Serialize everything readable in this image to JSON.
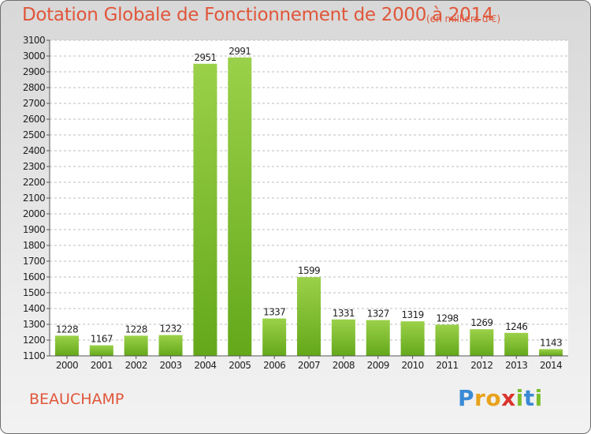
{
  "chart_data": {
    "type": "bar",
    "title": "Dotation Globale de Fonctionnement de 2000 à 2014",
    "subtitle": "(en milliers d'€)",
    "categories": [
      "2000",
      "2001",
      "2002",
      "2003",
      "2004",
      "2005",
      "2006",
      "2007",
      "2008",
      "2009",
      "2010",
      "2011",
      "2012",
      "2013",
      "2014"
    ],
    "values": [
      1228,
      1167,
      1228,
      1232,
      2951,
      2991,
      1337,
      1599,
      1331,
      1327,
      1319,
      1298,
      1269,
      1246,
      1143
    ],
    "ylim": [
      1100,
      3100
    ],
    "yticks": [
      1100,
      1200,
      1300,
      1400,
      1500,
      1600,
      1700,
      1800,
      1900,
      2000,
      2100,
      2200,
      2300,
      2400,
      2500,
      2600,
      2700,
      2800,
      2900,
      3000,
      3100
    ],
    "grid": true,
    "bar_color": "#7cbf2c"
  },
  "footer": {
    "commune": "BEAUCHAMP",
    "logo_parts": [
      {
        "text": "P",
        "color": "#3a8ad6"
      },
      {
        "text": "r",
        "color": "#e8a21c"
      },
      {
        "text": "o",
        "color": "#e8a21c"
      },
      {
        "text": "x",
        "color": "#d9342c"
      },
      {
        "text": "i",
        "color": "#7cbf2c"
      },
      {
        "text": "t",
        "color": "#3a8ad6"
      },
      {
        "text": "i",
        "color": "#7cbf2c"
      }
    ]
  }
}
